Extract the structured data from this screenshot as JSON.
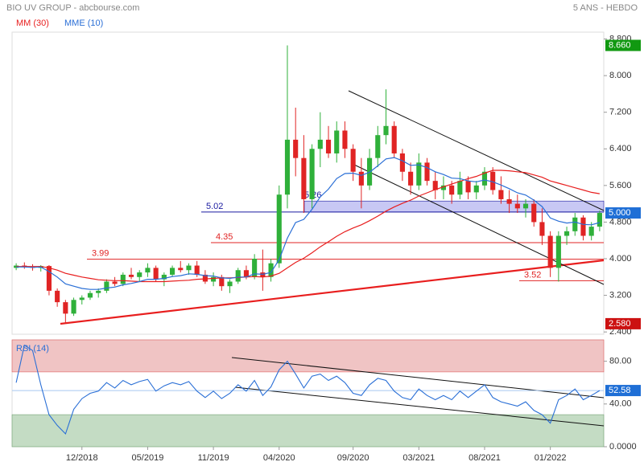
{
  "chart_data": {
    "type": "candlestick",
    "title": "BIO UV GROUP - abcbourse.com",
    "subtitle": "5 ANS - HEBDO",
    "x": [
      null,
      null,
      null,
      null,
      null,
      null,
      null,
      null,
      "12/2018",
      null,
      null,
      null,
      null,
      null,
      null,
      null,
      "05/2019",
      null,
      null,
      null,
      null,
      null,
      null,
      null,
      "11/2019",
      null,
      null,
      null,
      null,
      null,
      null,
      null,
      "04/2020",
      null,
      null,
      null,
      null,
      null,
      null,
      null,
      null,
      "09/2020",
      null,
      null,
      null,
      null,
      null,
      null,
      null,
      "03/2021",
      null,
      null,
      null,
      null,
      null,
      null,
      null,
      "08/2021",
      null,
      null,
      null,
      null,
      null,
      null,
      null,
      "01/2022",
      null,
      null,
      null,
      null,
      null,
      null
    ],
    "open": [
      3.8,
      3.85,
      3.82,
      3.8,
      3.84,
      3.3,
      3.05,
      2.8,
      3.1,
      3.15,
      3.25,
      3.3,
      3.5,
      3.45,
      3.65,
      3.6,
      3.7,
      3.8,
      3.55,
      3.65,
      3.8,
      3.75,
      3.85,
      3.65,
      3.5,
      3.6,
      3.4,
      3.5,
      3.75,
      3.6,
      3.7,
      3.6,
      3.9,
      5.4,
      6.6,
      6.2,
      5.3,
      6.4,
      6.6,
      6.3,
      6.8,
      6.4,
      5.9,
      5.6,
      6.2,
      6.7,
      6.9,
      6.3,
      5.9,
      5.6,
      6.1,
      5.7,
      5.5,
      5.6,
      5.4,
      5.7,
      5.45,
      5.6,
      5.9,
      5.5,
      5.3,
      5.2,
      5.1,
      5.2,
      4.8,
      4.5,
      3.8,
      4.5,
      4.6,
      4.9,
      4.5,
      4.7
    ],
    "high": [
      3.9,
      3.92,
      3.88,
      3.86,
      3.86,
      3.35,
      3.1,
      3.15,
      3.2,
      3.3,
      3.35,
      3.55,
      3.6,
      3.7,
      3.8,
      3.75,
      3.9,
      3.85,
      3.7,
      3.85,
      3.95,
      3.9,
      3.95,
      3.75,
      3.7,
      3.65,
      3.55,
      3.8,
      3.85,
      4.1,
      4.2,
      4.0,
      5.6,
      8.66,
      7.3,
      6.7,
      6.5,
      7.2,
      6.9,
      7.0,
      7.0,
      6.5,
      6.2,
      6.4,
      6.9,
      7.7,
      7.0,
      6.4,
      6.1,
      6.3,
      6.2,
      5.9,
      5.8,
      5.7,
      5.9,
      5.8,
      5.7,
      6.0,
      6.0,
      5.8,
      5.5,
      5.4,
      5.3,
      5.3,
      5.1,
      4.6,
      4.6,
      4.7,
      5.0,
      4.95,
      4.8,
      5.05
    ],
    "low": [
      3.75,
      3.78,
      3.74,
      3.72,
      3.2,
      2.95,
      2.58,
      2.75,
      3.0,
      3.1,
      3.15,
      3.25,
      3.4,
      3.4,
      3.55,
      3.5,
      3.6,
      3.5,
      3.4,
      3.6,
      3.7,
      3.65,
      3.6,
      3.45,
      3.4,
      3.3,
      3.25,
      3.45,
      3.55,
      3.55,
      3.3,
      3.5,
      3.8,
      5.1,
      5.8,
      5.0,
      5.1,
      6.0,
      6.2,
      6.1,
      6.2,
      5.7,
      5.1,
      5.5,
      6.0,
      6.5,
      6.2,
      5.7,
      5.4,
      5.5,
      5.6,
      5.3,
      5.3,
      5.2,
      5.3,
      5.3,
      5.3,
      5.5,
      5.4,
      5.2,
      5.0,
      5.0,
      4.9,
      4.7,
      4.3,
      3.6,
      3.5,
      4.3,
      4.5,
      4.4,
      4.4,
      4.6
    ],
    "close": [
      3.85,
      3.82,
      3.8,
      3.84,
      3.3,
      3.05,
      2.8,
      3.1,
      3.15,
      3.25,
      3.3,
      3.5,
      3.45,
      3.65,
      3.6,
      3.7,
      3.8,
      3.55,
      3.65,
      3.8,
      3.75,
      3.85,
      3.65,
      3.5,
      3.6,
      3.4,
      3.5,
      3.75,
      3.6,
      4.0,
      3.6,
      3.9,
      5.4,
      6.6,
      6.2,
      5.3,
      6.4,
      6.6,
      6.3,
      6.8,
      6.4,
      5.9,
      5.6,
      6.2,
      6.7,
      6.9,
      6.3,
      5.9,
      5.6,
      6.1,
      5.7,
      5.5,
      5.6,
      5.4,
      5.7,
      5.45,
      5.6,
      5.9,
      5.5,
      5.3,
      5.2,
      5.1,
      5.2,
      4.8,
      4.5,
      3.8,
      4.5,
      4.6,
      4.9,
      4.5,
      4.7,
      5.0
    ],
    "up_color": "#2fb03a",
    "down_color": "#e02424",
    "series": [
      {
        "name": "MM (30)",
        "color": "#e81e1e",
        "values": [
          3.83,
          3.83,
          3.83,
          3.83,
          3.8,
          3.75,
          3.68,
          3.64,
          3.6,
          3.57,
          3.54,
          3.53,
          3.52,
          3.52,
          3.51,
          3.5,
          3.5,
          3.5,
          3.5,
          3.51,
          3.52,
          3.53,
          3.55,
          3.56,
          3.57,
          3.58,
          3.58,
          3.59,
          3.6,
          3.61,
          3.6,
          3.62,
          3.68,
          3.8,
          3.92,
          4.01,
          4.13,
          4.26,
          4.37,
          4.49,
          4.59,
          4.67,
          4.74,
          4.83,
          4.93,
          5.04,
          5.13,
          5.21,
          5.28,
          5.37,
          5.44,
          5.51,
          5.57,
          5.63,
          5.69,
          5.75,
          5.8,
          5.87,
          5.93,
          5.93,
          5.92,
          5.9,
          5.88,
          5.83,
          5.78,
          5.7,
          5.65,
          5.6,
          5.55,
          5.5,
          5.45,
          5.42
        ]
      },
      {
        "name": "MME (10)",
        "color": "#2a6fd6",
        "values": [
          3.82,
          3.82,
          3.81,
          3.82,
          3.72,
          3.6,
          3.45,
          3.4,
          3.35,
          3.33,
          3.33,
          3.36,
          3.38,
          3.43,
          3.46,
          3.5,
          3.55,
          3.55,
          3.57,
          3.61,
          3.63,
          3.67,
          3.66,
          3.63,
          3.62,
          3.58,
          3.57,
          3.6,
          3.6,
          3.67,
          3.66,
          3.7,
          3.98,
          4.45,
          4.79,
          4.86,
          5.08,
          5.35,
          5.52,
          5.75,
          5.86,
          5.87,
          5.82,
          5.89,
          6.03,
          6.18,
          6.21,
          6.14,
          6.04,
          6.05,
          5.99,
          5.9,
          5.84,
          5.76,
          5.75,
          5.7,
          5.68,
          5.72,
          5.68,
          5.61,
          5.53,
          5.44,
          5.39,
          5.28,
          5.14,
          4.89,
          4.82,
          4.78,
          4.8,
          4.75,
          4.74,
          4.79
        ]
      }
    ],
    "ylim": [
      2.35,
      8.95
    ],
    "yticks": [
      {
        "value": 8.8,
        "label": "8.800"
      },
      {
        "value": 8,
        "label": "8.000"
      },
      {
        "value": 7.2,
        "label": "7.200"
      },
      {
        "value": 6.4,
        "label": "6.400"
      },
      {
        "value": 5.6,
        "label": "5.600"
      },
      {
        "value": 4.8,
        "label": "4.800"
      },
      {
        "value": 4,
        "label": "4.000"
      },
      {
        "value": 3.2,
        "label": "3.200"
      },
      {
        "value": 2.4,
        "label": "2.400"
      }
    ],
    "levels": [
      {
        "value": 5.02,
        "color": "#1a1aa0"
      },
      {
        "value": 5.26,
        "color": "#1a1aa0"
      },
      {
        "value": 4.35,
        "color": "#e02424"
      },
      {
        "value": 3.99,
        "color": "#e02424"
      },
      {
        "value": 3.52,
        "color": "#e02424"
      }
    ],
    "badges": [
      {
        "value": 8.66,
        "label": "8.660",
        "color": "#119911"
      },
      {
        "value": 5,
        "label": "5.000",
        "color": "#1f6fd6"
      },
      {
        "value": 2.58,
        "label": "2.580",
        "color": "#cc1111"
      }
    ],
    "rsi": {
      "name": "RSI (14)",
      "color": "#2a6fd6",
      "values": [
        60,
        95,
        90,
        58,
        30,
        20,
        12,
        35,
        45,
        50,
        52,
        60,
        55,
        62,
        58,
        61,
        63,
        52,
        57,
        60,
        58,
        61,
        52,
        46,
        52,
        45,
        50,
        58,
        52,
        62,
        48,
        56,
        72,
        80,
        68,
        55,
        66,
        68,
        62,
        66,
        60,
        50,
        48,
        58,
        64,
        62,
        52,
        46,
        44,
        54,
        48,
        44,
        48,
        44,
        52,
        46,
        52,
        58,
        46,
        42,
        40,
        38,
        42,
        34,
        30,
        22,
        44,
        48,
        54,
        44,
        48,
        52.58
      ],
      "ylim": [
        0,
        100
      ],
      "yticks": [
        {
          "value": 80,
          "label": "80.00"
        },
        {
          "value": 40,
          "label": "40.00"
        },
        {
          "value": 0,
          "label": "0.0000"
        }
      ],
      "zones": [
        {
          "from": 70,
          "to": 100,
          "color": "#f0c4c4"
        },
        {
          "from": 0,
          "to": 30,
          "color": "#c4dcc4"
        }
      ],
      "badge": 52.58,
      "badge_color": "#1f6fd6"
    }
  }
}
